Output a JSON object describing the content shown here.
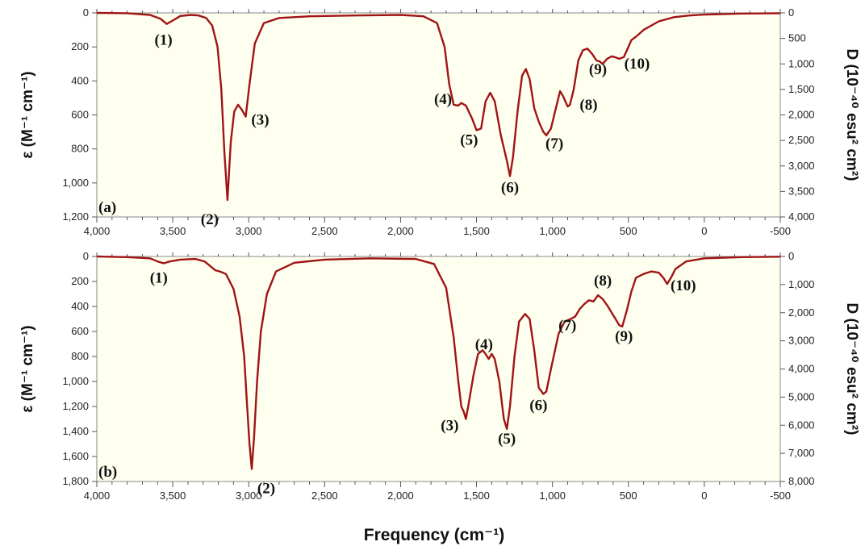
{
  "xlabel": "Frequency (cm⁻¹)",
  "line_color": "#a01414",
  "plot_bg": "#fffff0",
  "chart_data": [
    {
      "type": "line",
      "panel_label": "(a)",
      "xlim": [
        4000,
        -500
      ],
      "x_ticks": [
        "4,000",
        "3,500",
        "3,000",
        "2,500",
        "2,000",
        "1,500",
        "1,000",
        "500",
        "0",
        "-500"
      ],
      "ylabel_left": "ε (M⁻¹ cm⁻¹)",
      "ylabel_right": "D (10⁻⁴⁰ esu² cm²)",
      "ylim_left": [
        0,
        1200
      ],
      "left_ticks": [
        "0",
        "200",
        "400",
        "600",
        "800",
        "1,000",
        "1,200"
      ],
      "right_ticks": [
        "0",
        "500",
        "1,000",
        "1,500",
        "2,000",
        "2,500",
        "3,000",
        "3,500",
        "4,000"
      ],
      "ylim_right": [
        0,
        4000
      ],
      "points": [
        [
          4000,
          0
        ],
        [
          3800,
          2
        ],
        [
          3650,
          12
        ],
        [
          3580,
          35
        ],
        [
          3540,
          65
        ],
        [
          3500,
          45
        ],
        [
          3450,
          18
        ],
        [
          3380,
          12
        ],
        [
          3330,
          15
        ],
        [
          3280,
          30
        ],
        [
          3240,
          75
        ],
        [
          3205,
          200
        ],
        [
          3180,
          450
        ],
        [
          3160,
          820
        ],
        [
          3140,
          1100
        ],
        [
          3118,
          760
        ],
        [
          3095,
          580
        ],
        [
          3070,
          540
        ],
        [
          3045,
          570
        ],
        [
          3020,
          610
        ],
        [
          2995,
          420
        ],
        [
          2960,
          180
        ],
        [
          2900,
          60
        ],
        [
          2800,
          30
        ],
        [
          2600,
          20
        ],
        [
          2300,
          15
        ],
        [
          2000,
          12
        ],
        [
          1850,
          20
        ],
        [
          1760,
          60
        ],
        [
          1710,
          200
        ],
        [
          1680,
          420
        ],
        [
          1650,
          540
        ],
        [
          1620,
          545
        ],
        [
          1600,
          530
        ],
        [
          1570,
          545
        ],
        [
          1530,
          620
        ],
        [
          1500,
          690
        ],
        [
          1470,
          680
        ],
        [
          1440,
          520
        ],
        [
          1410,
          470
        ],
        [
          1380,
          520
        ],
        [
          1340,
          720
        ],
        [
          1300,
          870
        ],
        [
          1280,
          960
        ],
        [
          1260,
          850
        ],
        [
          1230,
          580
        ],
        [
          1200,
          370
        ],
        [
          1175,
          330
        ],
        [
          1150,
          390
        ],
        [
          1120,
          560
        ],
        [
          1090,
          640
        ],
        [
          1060,
          700
        ],
        [
          1040,
          720
        ],
        [
          1010,
          680
        ],
        [
          980,
          570
        ],
        [
          950,
          460
        ],
        [
          930,
          490
        ],
        [
          900,
          550
        ],
        [
          885,
          540
        ],
        [
          860,
          450
        ],
        [
          830,
          280
        ],
        [
          800,
          220
        ],
        [
          770,
          210
        ],
        [
          740,
          240
        ],
        [
          710,
          280
        ],
        [
          690,
          285
        ],
        [
          670,
          300
        ],
        [
          640,
          270
        ],
        [
          610,
          255
        ],
        [
          590,
          260
        ],
        [
          560,
          270
        ],
        [
          530,
          260
        ],
        [
          500,
          200
        ],
        [
          480,
          160
        ],
        [
          450,
          140
        ],
        [
          400,
          100
        ],
        [
          300,
          50
        ],
        [
          200,
          25
        ],
        [
          100,
          15
        ],
        [
          0,
          10
        ],
        [
          -250,
          4
        ],
        [
          -500,
          2
        ]
      ],
      "peaks": [
        {
          "label": "(1)",
          "x": 3540,
          "y": 65
        },
        {
          "label": "(2)",
          "x": 3140,
          "y": 1100
        },
        {
          "label": "(3)",
          "x": 3020,
          "y": 610
        },
        {
          "label": "(4)",
          "x": 1625,
          "y": 545
        },
        {
          "label": "(5)",
          "x": 1485,
          "y": 690
        },
        {
          "label": "(6)",
          "x": 1280,
          "y": 960
        },
        {
          "label": "(7)",
          "x": 1040,
          "y": 720
        },
        {
          "label": "(8)",
          "x": 900,
          "y": 550
        },
        {
          "label": "(9)",
          "x": 690,
          "y": 285
        },
        {
          "label": "(10)",
          "x": 560,
          "y": 270
        }
      ]
    },
    {
      "type": "line",
      "panel_label": "(b)",
      "xlim": [
        4000,
        -500
      ],
      "x_ticks": [
        "4,000",
        "3,500",
        "3,000",
        "2,500",
        "2,000",
        "1,500",
        "1,000",
        "500",
        "0",
        "-500"
      ],
      "ylabel_left": "ε (M⁻¹ cm⁻¹)",
      "ylabel_right": "D (10⁻⁴⁰ esu² cm²)",
      "ylim_left": [
        0,
        1800
      ],
      "left_ticks": [
        "0",
        "200",
        "400",
        "600",
        "800",
        "1,000",
        "1,200",
        "1,400",
        "1,600",
        "1,800"
      ],
      "right_ticks": [
        "0",
        "1,000",
        "2,000",
        "3,000",
        "4,000",
        "5,000",
        "6,000",
        "7,000",
        "8,000"
      ],
      "ylim_right": [
        0,
        8000
      ],
      "points": [
        [
          4000,
          0
        ],
        [
          3800,
          5
        ],
        [
          3650,
          15
        ],
        [
          3600,
          40
        ],
        [
          3560,
          55
        ],
        [
          3520,
          40
        ],
        [
          3450,
          25
        ],
        [
          3350,
          20
        ],
        [
          3290,
          40
        ],
        [
          3250,
          80
        ],
        [
          3220,
          110
        ],
        [
          3190,
          120
        ],
        [
          3150,
          140
        ],
        [
          3100,
          260
        ],
        [
          3060,
          480
        ],
        [
          3030,
          800
        ],
        [
          3010,
          1200
        ],
        [
          2995,
          1500
        ],
        [
          2980,
          1700
        ],
        [
          2965,
          1450
        ],
        [
          2945,
          1000
        ],
        [
          2920,
          600
        ],
        [
          2880,
          300
        ],
        [
          2820,
          120
        ],
        [
          2700,
          50
        ],
        [
          2500,
          25
        ],
        [
          2200,
          15
        ],
        [
          1900,
          20
        ],
        [
          1780,
          60
        ],
        [
          1700,
          250
        ],
        [
          1650,
          650
        ],
        [
          1620,
          1000
        ],
        [
          1600,
          1200
        ],
        [
          1585,
          1240
        ],
        [
          1570,
          1300
        ],
        [
          1555,
          1200
        ],
        [
          1520,
          950
        ],
        [
          1490,
          780
        ],
        [
          1460,
          750
        ],
        [
          1440,
          780
        ],
        [
          1420,
          820
        ],
        [
          1400,
          780
        ],
        [
          1380,
          820
        ],
        [
          1350,
          1000
        ],
        [
          1320,
          1300
        ],
        [
          1300,
          1380
        ],
        [
          1280,
          1200
        ],
        [
          1250,
          800
        ],
        [
          1220,
          520
        ],
        [
          1180,
          460
        ],
        [
          1150,
          500
        ],
        [
          1120,
          750
        ],
        [
          1090,
          1050
        ],
        [
          1060,
          1100
        ],
        [
          1040,
          1080
        ],
        [
          1010,
          900
        ],
        [
          960,
          620
        ],
        [
          920,
          520
        ],
        [
          880,
          500
        ],
        [
          850,
          480
        ],
        [
          820,
          420
        ],
        [
          790,
          380
        ],
        [
          760,
          350
        ],
        [
          730,
          360
        ],
        [
          700,
          310
        ],
        [
          670,
          340
        ],
        [
          640,
          390
        ],
        [
          600,
          470
        ],
        [
          560,
          550
        ],
        [
          540,
          560
        ],
        [
          510,
          430
        ],
        [
          480,
          280
        ],
        [
          450,
          170
        ],
        [
          400,
          140
        ],
        [
          350,
          120
        ],
        [
          300,
          130
        ],
        [
          270,
          170
        ],
        [
          245,
          220
        ],
        [
          220,
          170
        ],
        [
          190,
          100
        ],
        [
          120,
          40
        ],
        [
          0,
          15
        ],
        [
          -250,
          5
        ],
        [
          -500,
          2
        ]
      ],
      "peaks": [
        {
          "label": "(1)",
          "x": 3560,
          "y": 55
        },
        {
          "label": "(2)",
          "x": 2980,
          "y": 1700
        },
        {
          "label": "(3)",
          "x": 1570,
          "y": 1300
        },
        {
          "label": "(4)",
          "x": 1440,
          "y": 780
        },
        {
          "label": "(5)",
          "x": 1300,
          "y": 1380
        },
        {
          "label": "(6)",
          "x": 1060,
          "y": 1100
        },
        {
          "label": "(7)",
          "x": 880,
          "y": 500
        },
        {
          "label": "(8)",
          "x": 700,
          "y": 310
        },
        {
          "label": "(9)",
          "x": 540,
          "y": 560
        },
        {
          "label": "(10)",
          "x": 245,
          "y": 220
        }
      ]
    }
  ]
}
